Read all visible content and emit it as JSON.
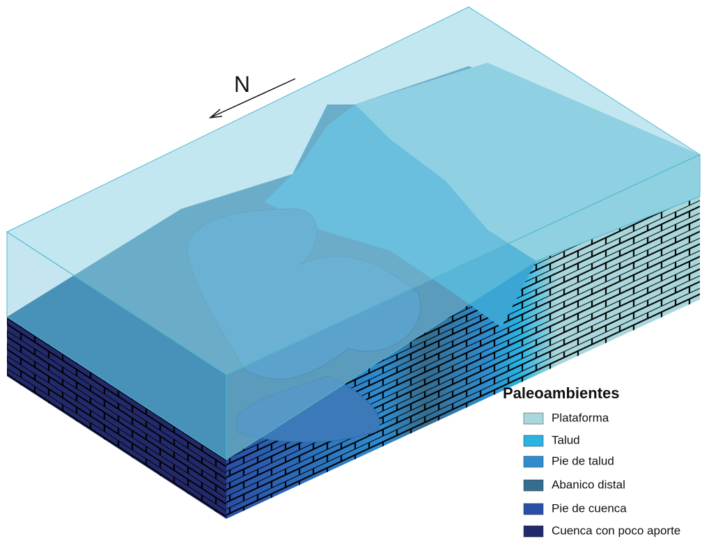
{
  "north_label": "N",
  "legend": {
    "title": "Paleoambientes",
    "items": [
      {
        "label": "Plataforma",
        "color": "#a9d7dc"
      },
      {
        "label": "Talud",
        "color": "#2bb3e2"
      },
      {
        "label": "Pie de talud",
        "color": "#2f8ccf"
      },
      {
        "label": "Abanico distal",
        "color": "#356d90"
      },
      {
        "label": "Pie de cuenca",
        "color": "#2a4fa6"
      },
      {
        "label": "Cuenca con poco aporte",
        "color": "#232a6c"
      }
    ]
  }
}
